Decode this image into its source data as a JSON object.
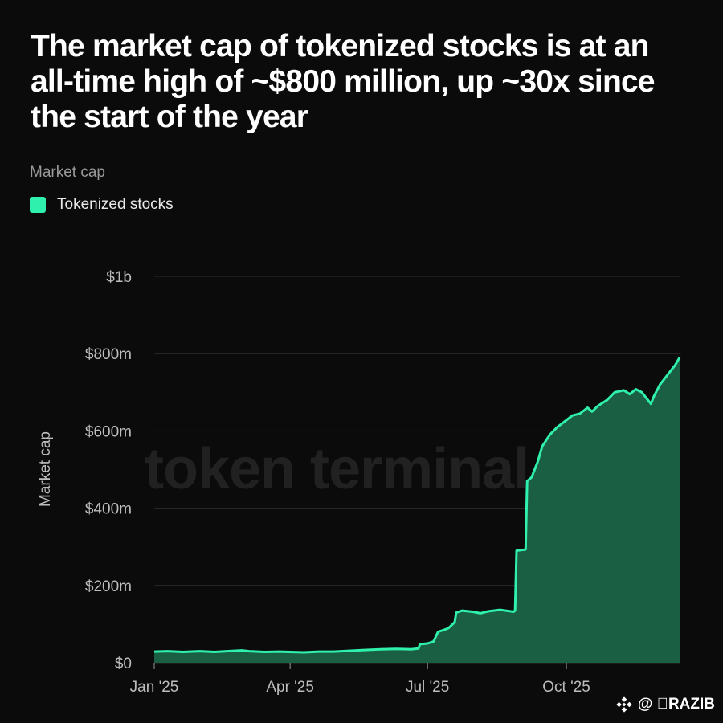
{
  "title": "The market cap of tokenized stocks is at an all-time high of ~$800 million, up ~30x since the start of the year",
  "subtitle": "Market cap",
  "legend": [
    {
      "label": "Tokenized stocks",
      "color": "#2ff0ac"
    }
  ],
  "watermark": "token terminal_",
  "credit": {
    "text": "@ \u0000RAZIB",
    "logo_icon": "binance-square-icon"
  },
  "colors": {
    "line": "#2ff0ac",
    "area": "#1a5e43",
    "grid": "#2c2c2c",
    "background": "#0b0b0b"
  },
  "chart_data": {
    "type": "area",
    "title": "",
    "xlabel": "",
    "ylabel": "Market cap",
    "ylim": [
      0,
      1000
    ],
    "y_unit": "millions USD",
    "y_ticks": [
      {
        "value": 0,
        "label": "$0"
      },
      {
        "value": 200,
        "label": "$200m"
      },
      {
        "value": 400,
        "label": "$400m"
      },
      {
        "value": 600,
        "label": "$600m"
      },
      {
        "value": 800,
        "label": "$800m"
      },
      {
        "value": 1000,
        "label": "$1b"
      }
    ],
    "x_range": [
      "2025-01-01",
      "2025-12-15"
    ],
    "x_ticks": [
      {
        "date": "2025-01-01",
        "label": "Jan '25"
      },
      {
        "date": "2025-04-01",
        "label": "Apr '25"
      },
      {
        "date": "2025-07-01",
        "label": "Jul '25"
      },
      {
        "date": "2025-10-01",
        "label": "Oct '25"
      }
    ],
    "grid": true,
    "legend_position": "top-left",
    "series": [
      {
        "name": "Tokenized stocks",
        "points": [
          [
            "2025-01-01",
            29
          ],
          [
            "2025-01-10",
            30
          ],
          [
            "2025-01-20",
            28
          ],
          [
            "2025-01-31",
            30
          ],
          [
            "2025-02-10",
            28
          ],
          [
            "2025-02-18",
            30
          ],
          [
            "2025-02-28",
            32
          ],
          [
            "2025-03-05",
            30
          ],
          [
            "2025-03-15",
            28
          ],
          [
            "2025-03-25",
            29
          ],
          [
            "2025-04-01",
            28
          ],
          [
            "2025-04-10",
            27
          ],
          [
            "2025-04-20",
            29
          ],
          [
            "2025-04-30",
            29
          ],
          [
            "2025-05-10",
            31
          ],
          [
            "2025-05-20",
            33
          ],
          [
            "2025-05-31",
            35
          ],
          [
            "2025-06-10",
            36
          ],
          [
            "2025-06-20",
            35
          ],
          [
            "2025-06-25",
            37
          ],
          [
            "2025-06-26",
            48
          ],
          [
            "2025-07-01",
            50
          ],
          [
            "2025-07-05",
            55
          ],
          [
            "2025-07-08",
            80
          ],
          [
            "2025-07-12",
            85
          ],
          [
            "2025-07-15",
            90
          ],
          [
            "2025-07-19",
            105
          ],
          [
            "2025-07-20",
            130
          ],
          [
            "2025-07-24",
            135
          ],
          [
            "2025-07-31",
            132
          ],
          [
            "2025-08-05",
            128
          ],
          [
            "2025-08-10",
            133
          ],
          [
            "2025-08-18",
            137
          ],
          [
            "2025-08-27",
            132
          ],
          [
            "2025-08-28",
            135
          ],
          [
            "2025-08-29",
            290
          ],
          [
            "2025-09-02",
            292
          ],
          [
            "2025-09-04",
            293
          ],
          [
            "2025-09-05",
            470
          ],
          [
            "2025-09-08",
            480
          ],
          [
            "2025-09-12",
            520
          ],
          [
            "2025-09-15",
            560
          ],
          [
            "2025-09-20",
            590
          ],
          [
            "2025-09-25",
            610
          ],
          [
            "2025-09-30",
            625
          ],
          [
            "2025-10-05",
            640
          ],
          [
            "2025-10-10",
            645
          ],
          [
            "2025-10-15",
            660
          ],
          [
            "2025-10-18",
            650
          ],
          [
            "2025-10-22",
            665
          ],
          [
            "2025-10-28",
            680
          ],
          [
            "2025-11-02",
            700
          ],
          [
            "2025-11-08",
            705
          ],
          [
            "2025-11-12",
            695
          ],
          [
            "2025-11-16",
            708
          ],
          [
            "2025-11-20",
            700
          ],
          [
            "2025-11-24",
            680
          ],
          [
            "2025-11-26",
            670
          ],
          [
            "2025-11-28",
            690
          ],
          [
            "2025-12-02",
            720
          ],
          [
            "2025-12-06",
            740
          ],
          [
            "2025-12-09",
            755
          ],
          [
            "2025-12-12",
            770
          ],
          [
            "2025-12-15",
            790
          ]
        ]
      }
    ]
  }
}
